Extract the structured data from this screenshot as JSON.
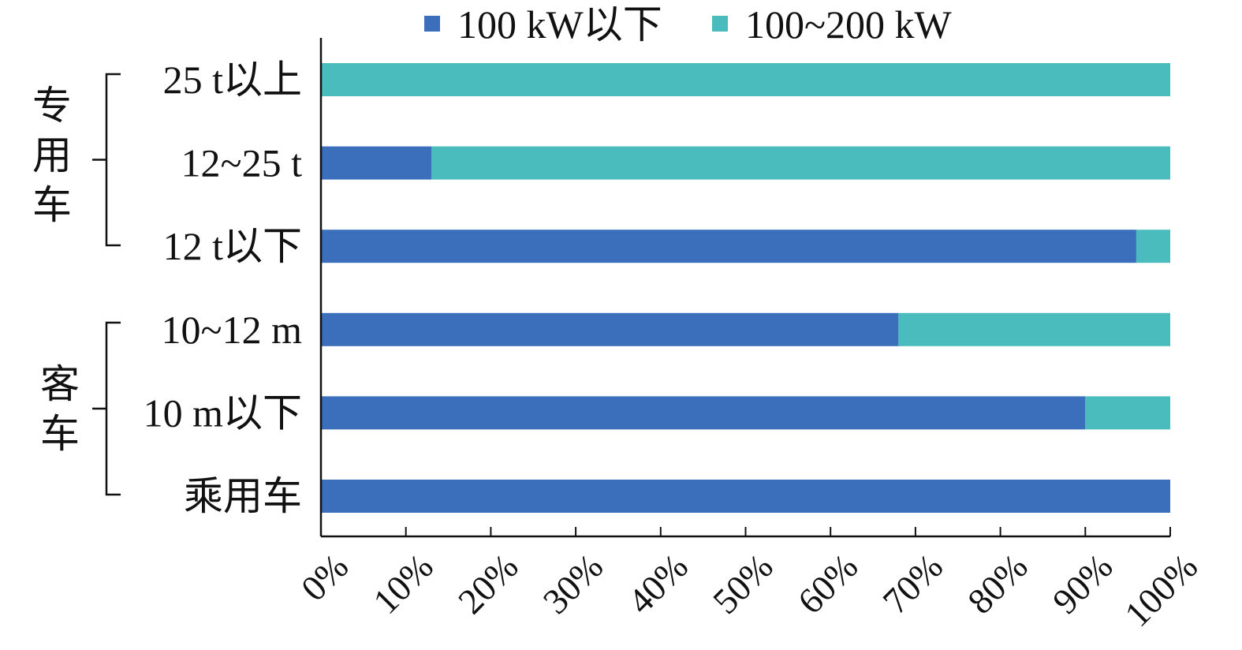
{
  "chart_data": {
    "type": "bar",
    "orientation": "horizontal",
    "stacked": true,
    "percent_axis": true,
    "categories": [
      "25 t以上",
      "12~25 t",
      "12 t以下",
      "10~12 m",
      "10 m以下",
      "乘用车"
    ],
    "groups": [
      {
        "label": "专用车",
        "categories": [
          "25 t以上",
          "12~25 t",
          "12 t以下"
        ]
      },
      {
        "label": "客车",
        "categories": [
          "10~12 m",
          "10 m以下",
          "乘用车"
        ]
      }
    ],
    "series": [
      {
        "name": "100 kW以下",
        "color": "#3b6fbc",
        "values": [
          0,
          13,
          96,
          68,
          90,
          100
        ]
      },
      {
        "name": "100~200 kW",
        "color": "#4bbcbd",
        "values": [
          100,
          87,
          4,
          32,
          10,
          0
        ]
      }
    ],
    "xlim": [
      0,
      100
    ],
    "xticks": [
      "0%",
      "10%",
      "20%",
      "30%",
      "40%",
      "50%",
      "60%",
      "70%",
      "80%",
      "90%",
      "100%"
    ],
    "title": "",
    "xlabel": "",
    "ylabel": "",
    "grid": false,
    "legend_position": "top"
  }
}
